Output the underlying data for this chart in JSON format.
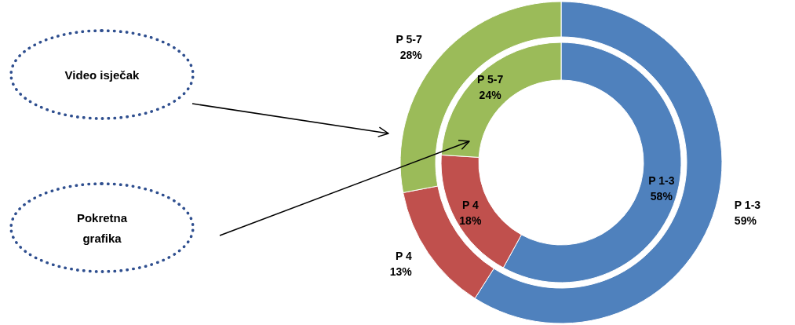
{
  "chart_data": {
    "type": "donut",
    "categories": [
      "P 1-3",
      "P 4",
      "P 5-7"
    ],
    "colors": [
      "#4f81bd",
      "#c0504d",
      "#9bbb59"
    ],
    "data_labels": true,
    "legend": false,
    "series": [
      {
        "values": [
          59,
          13,
          28
        ],
        "value_labels": [
          "59%",
          "13%",
          "28%"
        ]
      },
      {
        "values": [
          58,
          18,
          24
        ],
        "value_labels": [
          "58%",
          "18%",
          "24%"
        ]
      }
    ],
    "annotations": [
      "Video isječak",
      "Pokretna grafika"
    ]
  }
}
